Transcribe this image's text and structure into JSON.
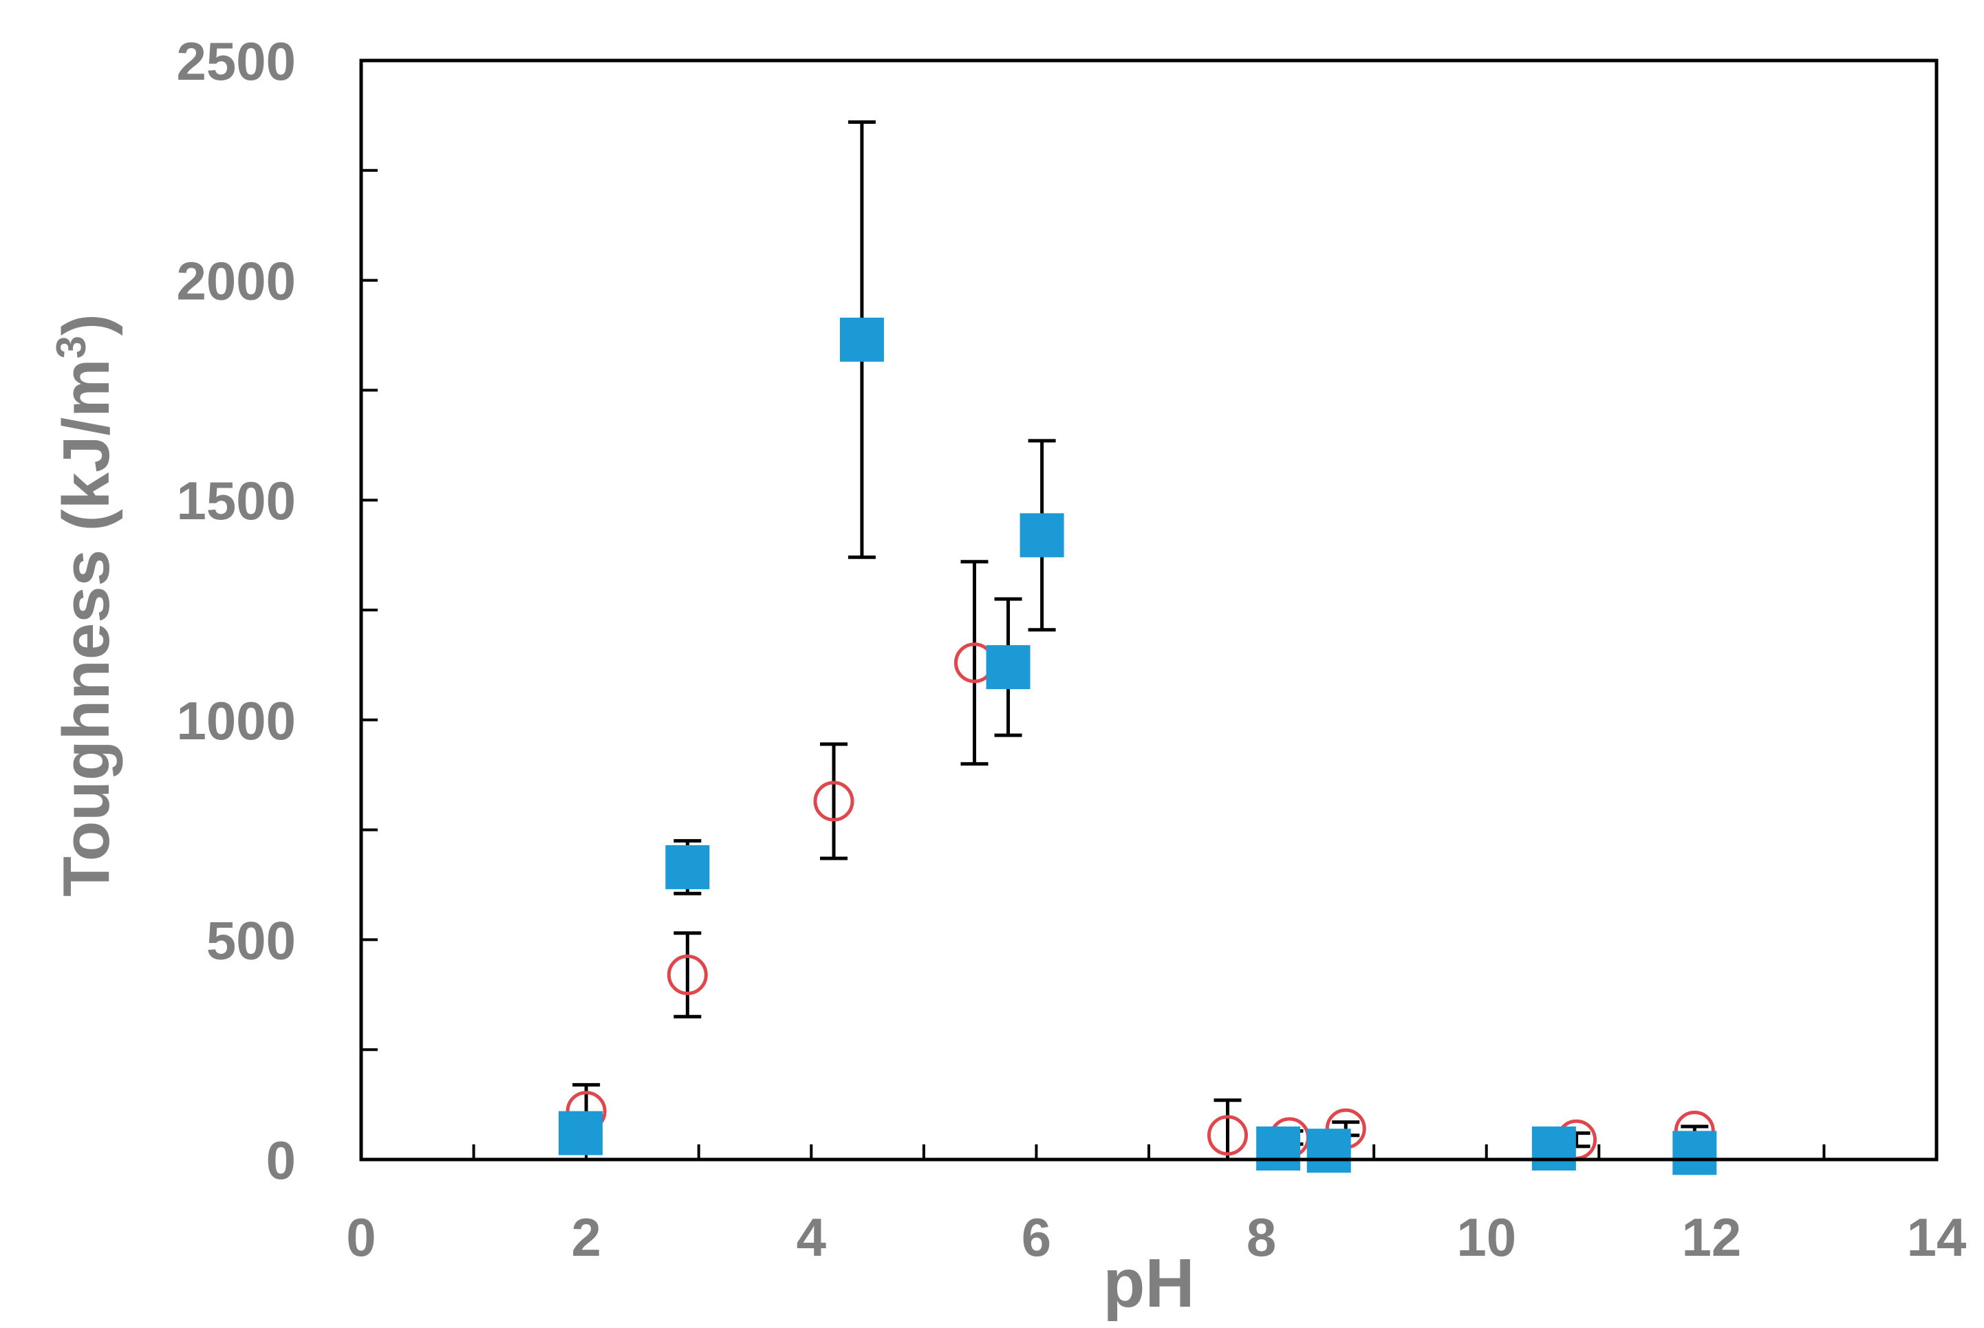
{
  "chart_data": {
    "type": "scatter",
    "title": "",
    "xlabel": "pH",
    "ylabel": "Toughness  (kJ/m",
    "ylabel_superscript": "3",
    "ylabel_close": ")",
    "xlim": [
      0,
      14
    ],
    "ylim": [
      0,
      2500
    ],
    "x_ticks": [
      0,
      2,
      4,
      6,
      8,
      10,
      12,
      14
    ],
    "y_ticks": [
      0,
      500,
      1000,
      1500,
      2000,
      2500
    ],
    "x_tick_labels": [
      "0",
      "2",
      "4",
      "6",
      "8",
      "10",
      "12",
      "14"
    ],
    "y_tick_labels": [
      "0",
      "500",
      "1000",
      "1500",
      "2000",
      "2500"
    ],
    "grid": false,
    "legend": "none",
    "series": [
      {
        "marker": "open-circle",
        "color": "#e0474c",
        "points": [
          {
            "x": 2.0,
            "y": 110,
            "err": 60
          },
          {
            "x": 2.9,
            "y": 420,
            "err": 95
          },
          {
            "x": 4.2,
            "y": 815,
            "err": 130
          },
          {
            "x": 5.45,
            "y": 1130,
            "err": 230
          },
          {
            "x": 7.7,
            "y": 55,
            "err": 80
          },
          {
            "x": 8.25,
            "y": 50,
            "err": 15
          },
          {
            "x": 8.75,
            "y": 70,
            "err": 15
          },
          {
            "x": 10.8,
            "y": 45,
            "err": 15
          },
          {
            "x": 11.85,
            "y": 65,
            "err": 10
          }
        ]
      },
      {
        "marker": "filled-square",
        "color": "#1b9ad6",
        "points": [
          {
            "x": 1.95,
            "y": 60,
            "err": 0
          },
          {
            "x": 2.9,
            "y": 665,
            "err": 60
          },
          {
            "x": 4.45,
            "y": 1865,
            "err": 495
          },
          {
            "x": 5.75,
            "y": 1120,
            "err": 155
          },
          {
            "x": 6.05,
            "y": 1420,
            "err": 215
          },
          {
            "x": 8.15,
            "y": 25,
            "err": 0
          },
          {
            "x": 8.6,
            "y": 20,
            "err": 0
          },
          {
            "x": 10.6,
            "y": 25,
            "err": 0
          },
          {
            "x": 11.85,
            "y": 15,
            "err": 0
          }
        ]
      }
    ]
  }
}
